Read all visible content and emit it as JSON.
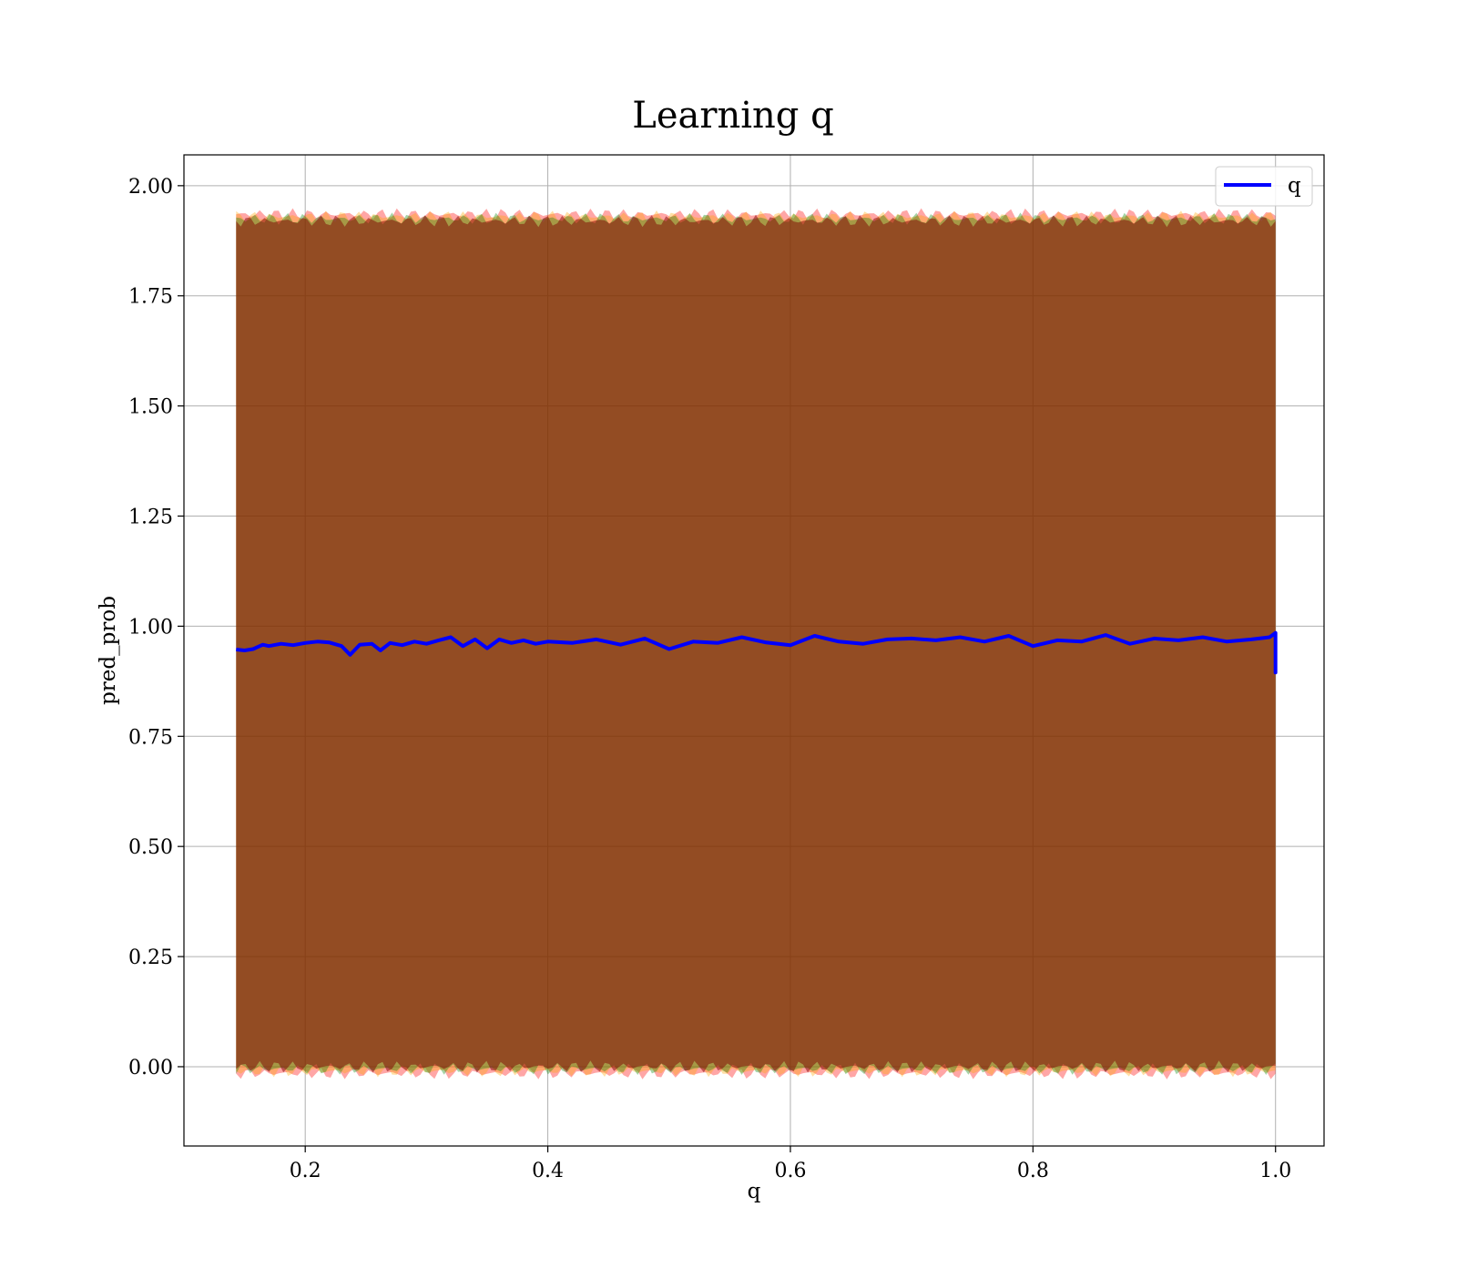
{
  "chart_data": {
    "type": "line",
    "title": "Learning q",
    "xlabel": "q",
    "ylabel": "pred_prob",
    "xlim": [
      0.1,
      1.04
    ],
    "ylim": [
      -0.18,
      2.07
    ],
    "grid": true,
    "legend_placement": "top-right",
    "xticks": [
      {
        "value": 0.2,
        "label": "0.2"
      },
      {
        "value": 0.4,
        "label": "0.4"
      },
      {
        "value": 0.6,
        "label": "0.6"
      },
      {
        "value": 0.8,
        "label": "0.8"
      },
      {
        "value": 1.0,
        "label": "1.0"
      }
    ],
    "yticks": [
      {
        "value": 0.0,
        "label": "0.00"
      },
      {
        "value": 0.25,
        "label": "0.25"
      },
      {
        "value": 0.5,
        "label": "0.50"
      },
      {
        "value": 0.75,
        "label": "0.75"
      },
      {
        "value": 1.0,
        "label": "1.00"
      },
      {
        "value": 1.25,
        "label": "1.25"
      },
      {
        "value": 1.5,
        "label": "1.50"
      },
      {
        "value": 1.75,
        "label": "1.75"
      },
      {
        "value": 2.0,
        "label": "2.00"
      }
    ],
    "series": [
      {
        "name": "q",
        "color": "#0000ff",
        "x": [
          0.143,
          0.15,
          0.157,
          0.165,
          0.17,
          0.18,
          0.19,
          0.2,
          0.21,
          0.22,
          0.23,
          0.237,
          0.245,
          0.255,
          0.262,
          0.27,
          0.28,
          0.29,
          0.3,
          0.31,
          0.32,
          0.33,
          0.34,
          0.35,
          0.36,
          0.37,
          0.38,
          0.39,
          0.4,
          0.42,
          0.44,
          0.46,
          0.48,
          0.5,
          0.52,
          0.54,
          0.56,
          0.58,
          0.6,
          0.62,
          0.64,
          0.66,
          0.68,
          0.7,
          0.72,
          0.74,
          0.76,
          0.78,
          0.8,
          0.82,
          0.84,
          0.86,
          0.88,
          0.9,
          0.92,
          0.94,
          0.96,
          0.98,
          0.995,
          1.0,
          1.0,
          1.0
        ],
        "y": [
          0.947,
          0.945,
          0.948,
          0.958,
          0.955,
          0.96,
          0.957,
          0.962,
          0.965,
          0.963,
          0.955,
          0.935,
          0.958,
          0.96,
          0.945,
          0.962,
          0.957,
          0.965,
          0.96,
          0.968,
          0.975,
          0.955,
          0.97,
          0.95,
          0.97,
          0.962,
          0.968,
          0.96,
          0.965,
          0.962,
          0.97,
          0.958,
          0.972,
          0.948,
          0.965,
          0.962,
          0.975,
          0.963,
          0.957,
          0.978,
          0.965,
          0.96,
          0.97,
          0.972,
          0.968,
          0.975,
          0.965,
          0.978,
          0.955,
          0.968,
          0.965,
          0.98,
          0.96,
          0.972,
          0.968,
          0.975,
          0.965,
          0.97,
          0.975,
          0.985,
          0.895,
          0.97
        ]
      }
    ],
    "bands": [
      {
        "color": "#ff0000",
        "opacity": 0.35,
        "upper": 1.935,
        "lower": -0.015
      },
      {
        "color": "#ffa500",
        "opacity": 0.35,
        "upper": 1.93,
        "lower": -0.01
      },
      {
        "color": "#008000",
        "opacity": 0.35,
        "upper": 1.925,
        "lower": -0.005
      },
      {
        "color": "#800000",
        "opacity": 0.5,
        "upper": 1.92,
        "lower": 0.0
      }
    ],
    "band_x_range": [
      0.143,
      1.0
    ]
  }
}
